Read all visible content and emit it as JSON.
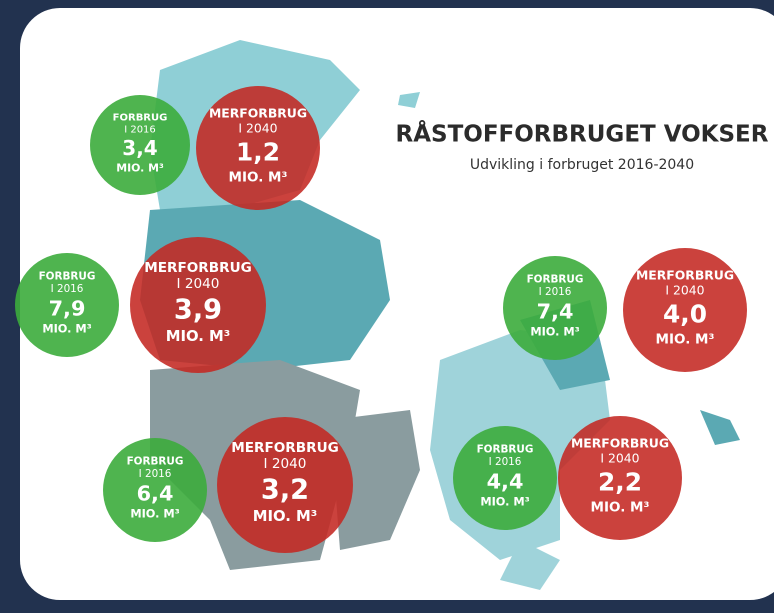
{
  "title": "RÅSTOFFORBRUGET VOKSER",
  "subtitle": "Udvikling i forbruget 2016-2040",
  "regions": [
    {
      "forbrug": {
        "label": "FORBRUG",
        "year": "I 2016",
        "value": "3,4",
        "unit": "MIO. M³"
      },
      "merforbrug": {
        "label": "MERFORBRUG",
        "year": "I 2040",
        "value": "1,2",
        "unit": "MIO. M³"
      }
    },
    {
      "forbrug": {
        "label": "FORBRUG",
        "year": "I 2016",
        "value": "7,9",
        "unit": "MIO. M³"
      },
      "merforbrug": {
        "label": "MERFORBRUG",
        "year": "I 2040",
        "value": "3,9",
        "unit": "MIO. M³"
      }
    },
    {
      "forbrug": {
        "label": "FORBRUG",
        "year": "I 2016",
        "value": "6,4",
        "unit": "MIO. M³"
      },
      "merforbrug": {
        "label": "MERFORBRUG",
        "year": "I 2040",
        "value": "3,2",
        "unit": "MIO. M³"
      }
    },
    {
      "forbrug": {
        "label": "FORBRUG",
        "year": "I 2016",
        "value": "7,4",
        "unit": "MIO. M³"
      },
      "merforbrug": {
        "label": "MERFORBRUG",
        "year": "I 2040",
        "value": "4,0",
        "unit": "MIO. M³"
      }
    },
    {
      "forbrug": {
        "label": "FORBRUG",
        "year": "I 2016",
        "value": "4,4",
        "unit": "MIO. M³"
      },
      "merforbrug": {
        "label": "MERFORBRUG",
        "year": "I 2040",
        "value": "2,2",
        "unit": "MIO. M³"
      }
    }
  ]
}
